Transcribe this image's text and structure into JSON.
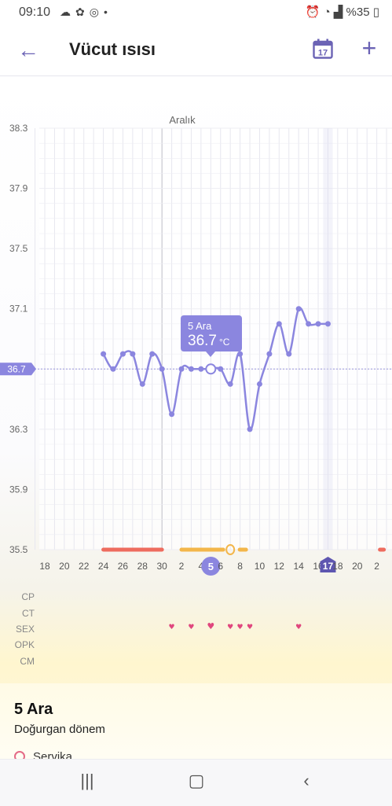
{
  "status_bar": {
    "time": "09:10",
    "battery": "%35",
    "left_icons": [
      "cloud-icon",
      "app-icon",
      "instagram-icon",
      "dot-icon"
    ],
    "right_icons": [
      "alarm-icon",
      "wifi-icon",
      "signal-icon"
    ]
  },
  "header": {
    "title": "Vücut ısısı",
    "calendar_day": "17"
  },
  "chart_data": {
    "type": "line",
    "title": "Aralık",
    "ylim": [
      35.5,
      38.3
    ],
    "yticks": [
      "38.3",
      "37.9",
      "37.5",
      "37.1",
      "36.7",
      "36.3",
      "35.9",
      "35.5"
    ],
    "xticks": [
      "18",
      "20",
      "22",
      "24",
      "26",
      "28",
      "30",
      "2",
      "4",
      "5",
      "6",
      "8",
      "10",
      "12",
      "14",
      "16",
      "17",
      "18",
      "20",
      "2"
    ],
    "highlight_y": "36.7",
    "selected_x": "5",
    "today_x": "17",
    "series": [
      {
        "values": [
          {
            "x": "24 Kas",
            "y": 36.8
          },
          {
            "x": "25 Kas",
            "y": 36.7
          },
          {
            "x": "26 Kas",
            "y": 36.8
          },
          {
            "x": "27 Kas",
            "y": 36.8
          },
          {
            "x": "28 Kas",
            "y": 36.6
          },
          {
            "x": "29 Kas",
            "y": 36.8
          },
          {
            "x": "30 Kas",
            "y": 36.7
          },
          {
            "x": "1 Ara",
            "y": 36.4
          },
          {
            "x": "2 Ara",
            "y": 36.7
          },
          {
            "x": "3 Ara",
            "y": 36.7
          },
          {
            "x": "4 Ara",
            "y": 36.7
          },
          {
            "x": "5 Ara",
            "y": 36.7
          },
          {
            "x": "6 Ara",
            "y": 36.7
          },
          {
            "x": "7 Ara",
            "y": 36.6
          },
          {
            "x": "8 Ara",
            "y": 36.8
          },
          {
            "x": "9 Ara",
            "y": 36.3
          },
          {
            "x": "10 Ara",
            "y": 36.6
          },
          {
            "x": "11 Ara",
            "y": 36.8
          },
          {
            "x": "12 Ara",
            "y": 37.0
          },
          {
            "x": "13 Ara",
            "y": 36.8
          },
          {
            "x": "14 Ara",
            "y": 37.1
          },
          {
            "x": "15 Ara",
            "y": 37.0
          },
          {
            "x": "16 Ara",
            "y": 37.0
          },
          {
            "x": "17 Ara",
            "y": 37.0
          }
        ]
      }
    ],
    "period_days": [
      "24",
      "25",
      "26",
      "27",
      "28",
      "29",
      "30"
    ],
    "fertile_days": [
      "2",
      "3",
      "4",
      "5",
      "6",
      "7",
      "8"
    ],
    "ovulation_day": "7",
    "sex_days": [
      "1",
      "3",
      "5",
      "7",
      "8",
      "9",
      "14"
    ]
  },
  "tooltip": {
    "date": "5 Ara",
    "value": "36.7",
    "unit": "°C"
  },
  "rows": [
    "CP",
    "CT",
    "SEX",
    "OPK",
    "CM"
  ],
  "summary": {
    "date": "5 Ara",
    "phase": "Doğurgan dönem",
    "row_label": "Servika"
  },
  "colors": {
    "accent": "#8b86df",
    "period": "#ee6c5e",
    "fertile": "#f3b64a",
    "heart": "#e0467e"
  },
  "navbar": {
    "recent": "recent-apps-icon",
    "home": "home-icon",
    "back": "back-icon"
  }
}
